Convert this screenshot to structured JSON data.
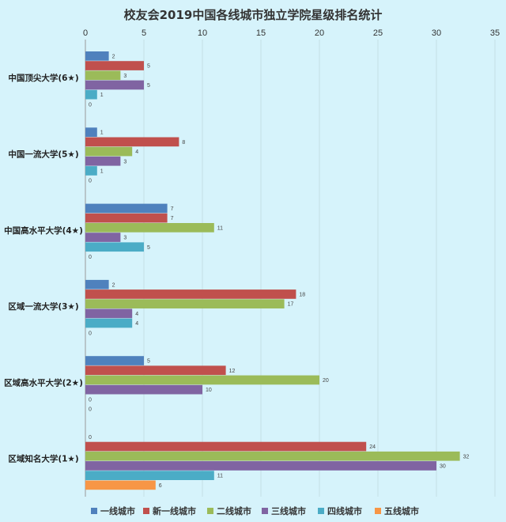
{
  "chart_data": {
    "type": "bar",
    "orientation": "horizontal",
    "title": "校友会2019中国各线城市独立学院星级排名统计",
    "xlim": [
      0,
      35
    ],
    "x_ticks": [
      0,
      5,
      10,
      15,
      20,
      25,
      30,
      35
    ],
    "x_axis_position": "top",
    "grid": true,
    "legend_position": "bottom",
    "categories": [
      "中国顶尖大学(6★)",
      "中国一流大学(5★)",
      "中国高水平大学(4★)",
      "区域一流大学(3★)",
      "区域高水平大学(2★)",
      "区域知名大学(1★)"
    ],
    "series": [
      {
        "name": "一线城市",
        "color": "#4f81bd",
        "values": [
          2,
          1,
          7,
          2,
          5,
          0
        ]
      },
      {
        "name": "新一线城市",
        "color": "#c0504d",
        "values": [
          5,
          8,
          7,
          18,
          12,
          24
        ]
      },
      {
        "name": "二线城市",
        "color": "#9bbb59",
        "values": [
          3,
          4,
          11,
          17,
          20,
          32
        ]
      },
      {
        "name": "三线城市",
        "color": "#8064a2",
        "values": [
          5,
          3,
          3,
          4,
          10,
          30
        ]
      },
      {
        "name": "四线城市",
        "color": "#4bacc6",
        "values": [
          1,
          1,
          5,
          4,
          0,
          11
        ]
      },
      {
        "name": "五线城市",
        "color": "#f79646",
        "values": [
          0,
          0,
          0,
          0,
          0,
          6
        ]
      }
    ]
  }
}
